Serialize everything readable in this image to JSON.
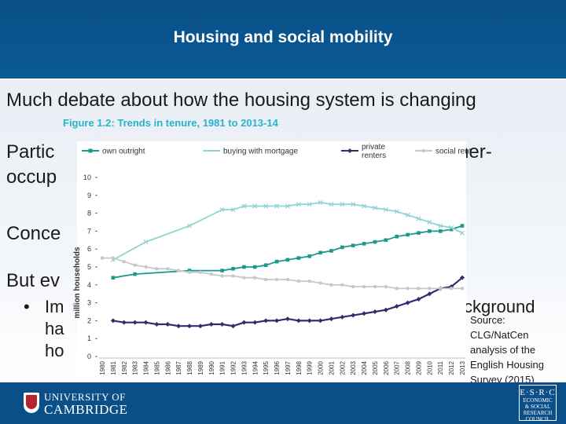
{
  "slide": {
    "title": "Housing and social mobility",
    "bullets": {
      "b1": "Much debate about how the housing system is changing",
      "b2_start": "Partic",
      "b2_end": "ner-",
      "b2_line2": "occup",
      "b3": "Conce",
      "b4": "But ev",
      "b5_marker": "•",
      "b5_a": "Im",
      "b5_b": "ha",
      "b5_c": "ho",
      "b5_right": "ckground"
    },
    "source": "Source: CLG/NatCen analysis of the English Housing Survey (2015)"
  },
  "footer": {
    "university_line1": "UNIVERSITY OF",
    "university_line2": "CAMBRIDGE",
    "esrc_letters": "E·S·R·C",
    "esrc_line1": "ECONOMIC",
    "esrc_line2": "& SOCIAL",
    "esrc_line3": "RESEARCH",
    "esrc_line4": "COUNCIL"
  },
  "colors": {
    "header": "#0a4f87",
    "own_outright": "#1a9a8a",
    "buying_with_mortgage": "#8fd5d1",
    "private_renters": "#2c2e6e",
    "social_renters": "#c8c8c8"
  },
  "chart_data": {
    "type": "line",
    "title": "Figure 1.2: Trends in tenure, 1981 to 2013-14",
    "ylabel": "million households",
    "xlabel": "",
    "ylim": [
      0,
      10
    ],
    "yticks": [
      "0",
      "1",
      "2",
      "3",
      "4",
      "5",
      "6",
      "7",
      "8",
      "9",
      "10"
    ],
    "legend_position": "top",
    "categories": [
      "1980",
      "1981",
      "1982",
      "1983",
      "1984",
      "1985",
      "1986",
      "1987",
      "1988",
      "1989",
      "1990",
      "1991",
      "1992",
      "1993",
      "1994",
      "1995",
      "1996",
      "1997",
      "1998",
      "1999",
      "2000",
      "2001",
      "2002",
      "2003",
      "2004",
      "2005",
      "2006",
      "2007",
      "2008",
      "2009",
      "2010",
      "2011",
      "2012",
      "2013"
    ],
    "series": [
      {
        "name": "own outright",
        "values": [
          null,
          4.4,
          null,
          4.6,
          null,
          null,
          null,
          null,
          4.8,
          null,
          null,
          4.8,
          4.9,
          5.0,
          5.0,
          5.1,
          5.3,
          5.4,
          5.5,
          5.6,
          5.8,
          5.9,
          6.1,
          6.2,
          6.3,
          6.4,
          6.5,
          6.7,
          6.8,
          6.9,
          7.0,
          7.0,
          7.1,
          7.3
        ]
      },
      {
        "name": "buying with mortgage",
        "values": [
          null,
          5.4,
          null,
          null,
          6.4,
          null,
          null,
          null,
          7.3,
          null,
          null,
          8.2,
          8.2,
          8.4,
          8.4,
          8.4,
          8.4,
          8.4,
          8.5,
          8.5,
          8.6,
          8.5,
          8.5,
          8.5,
          8.4,
          8.3,
          8.2,
          8.1,
          7.9,
          7.7,
          7.5,
          7.3,
          7.2,
          6.9
        ]
      },
      {
        "name": "private renters",
        "values": [
          null,
          2.0,
          1.9,
          1.9,
          1.9,
          1.8,
          1.8,
          1.7,
          1.7,
          1.7,
          1.8,
          1.8,
          1.7,
          1.9,
          1.9,
          2.0,
          2.0,
          2.1,
          2.0,
          2.0,
          2.0,
          2.1,
          2.2,
          2.3,
          2.4,
          2.5,
          2.6,
          2.8,
          3.0,
          3.2,
          3.5,
          3.8,
          3.9,
          4.4
        ]
      },
      {
        "name": "social renters",
        "values": [
          5.5,
          5.5,
          5.3,
          5.1,
          5.0,
          4.9,
          4.9,
          4.8,
          4.7,
          4.7,
          4.6,
          4.5,
          4.5,
          4.4,
          4.4,
          4.3,
          4.3,
          4.3,
          4.2,
          4.2,
          4.1,
          4.0,
          4.0,
          3.9,
          3.9,
          3.9,
          3.9,
          3.8,
          3.8,
          3.8,
          3.8,
          3.8,
          3.8,
          3.8
        ]
      }
    ]
  }
}
